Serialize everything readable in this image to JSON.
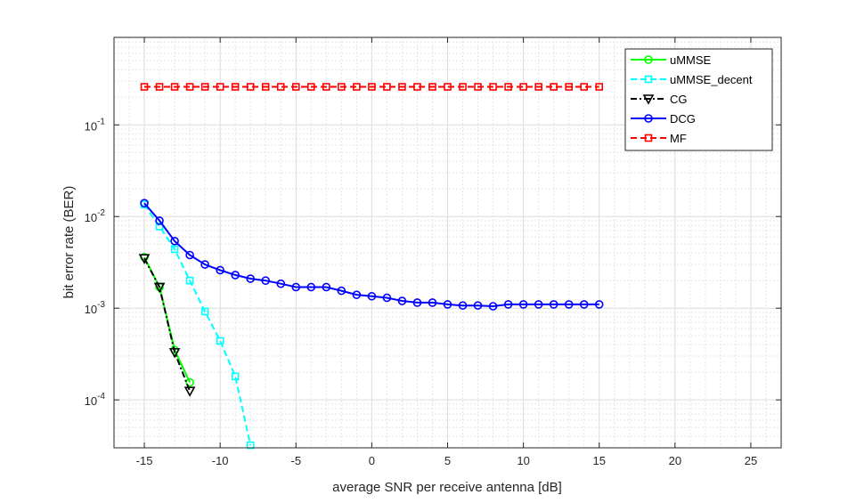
{
  "chart_data": {
    "type": "line",
    "title": "",
    "xlabel": "average SNR per receive antenna [dB]",
    "ylabel": "bit error rate (BER)",
    "y_scale": "log",
    "xlim": [
      -17,
      27
    ],
    "ylim": [
      3e-05,
      0.9
    ],
    "x_ticks": [
      "-15",
      "-10",
      "-5",
      "0",
      "5",
      "10",
      "15",
      "20",
      "25"
    ],
    "y_ticks": [
      {
        "mant": "10",
        "exp": "-4"
      },
      {
        "mant": "10",
        "exp": "-3"
      },
      {
        "mant": "10",
        "exp": "-2"
      },
      {
        "mant": "10",
        "exp": "-1"
      }
    ],
    "grid": true,
    "minor_grid": true,
    "legend_position": "top-right",
    "series": [
      {
        "name": "uMMSE",
        "color": "#00ff00",
        "line": "solid",
        "marker": "circle",
        "x": [
          -15,
          -14,
          -13,
          -12
        ],
        "y": [
          0.0036,
          0.0017,
          0.00035,
          0.000155
        ]
      },
      {
        "name": "uMMSE_decent",
        "color": "#00ffff",
        "line": "dashed",
        "marker": "square",
        "x": [
          -15,
          -14,
          -13,
          -12,
          -11,
          -10,
          -9,
          -8
        ],
        "y": [
          0.0135,
          0.0078,
          0.0044,
          0.002,
          0.00092,
          0.00044,
          0.00018,
          3.2e-05
        ]
      },
      {
        "name": "CG",
        "color": "#000000",
        "line": "dashdot",
        "marker": "triangle-down",
        "x": [
          -15,
          -14,
          -13,
          -12
        ],
        "y": [
          0.0035,
          0.0017,
          0.00033,
          0.000125
        ]
      },
      {
        "name": "DCG",
        "color": "#0000ff",
        "line": "solid",
        "marker": "circle",
        "x": [
          -15,
          -14,
          -13,
          -12,
          -11,
          -10,
          -9,
          -8,
          -7,
          -6,
          -5,
          -4,
          -3,
          -2,
          -1,
          0,
          1,
          2,
          3,
          4,
          5,
          6,
          7,
          8,
          9,
          10,
          11,
          12,
          13,
          14,
          15
        ],
        "y": [
          0.014,
          0.009,
          0.0054,
          0.0038,
          0.003,
          0.0026,
          0.0023,
          0.0021,
          0.002,
          0.00185,
          0.0017,
          0.0017,
          0.0017,
          0.00155,
          0.0014,
          0.00135,
          0.0013,
          0.0012,
          0.00115,
          0.00115,
          0.0011,
          0.00107,
          0.00107,
          0.00105,
          0.0011,
          0.0011,
          0.0011,
          0.0011,
          0.0011,
          0.0011,
          0.0011
        ]
      },
      {
        "name": "MF",
        "color": "#ff0000",
        "line": "dashed",
        "marker": "square",
        "x": [
          -15,
          -14,
          -13,
          -12,
          -11,
          -10,
          -9,
          -8,
          -7,
          -6,
          -5,
          -4,
          -3,
          -2,
          -1,
          0,
          1,
          2,
          3,
          4,
          5,
          6,
          7,
          8,
          9,
          10,
          11,
          12,
          13,
          14,
          15
        ],
        "y": [
          0.26,
          0.26,
          0.26,
          0.26,
          0.26,
          0.26,
          0.26,
          0.26,
          0.26,
          0.26,
          0.26,
          0.26,
          0.26,
          0.26,
          0.26,
          0.26,
          0.26,
          0.26,
          0.26,
          0.26,
          0.26,
          0.26,
          0.26,
          0.26,
          0.26,
          0.26,
          0.26,
          0.26,
          0.26,
          0.26,
          0.26
        ]
      }
    ]
  }
}
